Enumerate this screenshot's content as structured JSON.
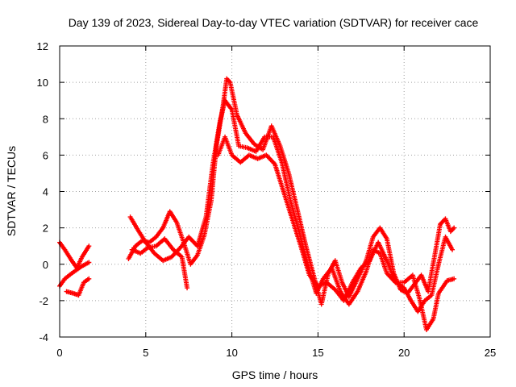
{
  "chart_data": {
    "type": "scatter",
    "title": "Day 139 of 2023, Sidereal Day-to-day VTEC variation (SDTVAR) for receiver cace",
    "xlabel": "GPS time / hours",
    "ylabel": "SDTVAR / TECUs",
    "xlim": [
      0,
      25
    ],
    "ylim": [
      -4,
      12
    ],
    "xticks": [
      0,
      5,
      10,
      15,
      20,
      25
    ],
    "yticks": [
      -4,
      -2,
      0,
      2,
      4,
      6,
      8,
      10,
      12
    ],
    "grid": true,
    "marker": "+",
    "series": [
      {
        "name": "SDTVAR",
        "color": "#ff0000",
        "tracks": [
          [
            [
              0.0,
              1.2
            ],
            [
              0.3,
              0.8
            ],
            [
              0.7,
              0.2
            ],
            [
              1.0,
              -0.2
            ],
            [
              1.3,
              0.4
            ],
            [
              1.7,
              1.0
            ]
          ],
          [
            [
              0.0,
              -1.2
            ],
            [
              0.3,
              -0.8
            ],
            [
              0.7,
              -0.5
            ],
            [
              1.0,
              -0.3
            ],
            [
              1.3,
              -0.1
            ],
            [
              1.7,
              0.1
            ]
          ],
          [
            [
              0.4,
              -1.5
            ],
            [
              0.8,
              -1.6
            ],
            [
              1.1,
              -1.7
            ],
            [
              1.4,
              -1.0
            ],
            [
              1.7,
              -0.8
            ]
          ],
          [
            [
              4.0,
              0.3
            ],
            [
              4.4,
              1.0
            ],
            [
              4.8,
              1.3
            ],
            [
              5.2,
              1.2
            ],
            [
              5.6,
              1.5
            ],
            [
              6.0,
              2.0
            ],
            [
              6.4,
              2.9
            ],
            [
              6.8,
              2.3
            ],
            [
              7.2,
              1.2
            ],
            [
              7.6,
              0.0
            ],
            [
              8.0,
              0.5
            ],
            [
              8.4,
              1.6
            ],
            [
              8.8,
              3.5
            ],
            [
              9.1,
              6.5
            ],
            [
              9.5,
              8.8
            ],
            [
              9.7,
              10.2
            ],
            [
              9.9,
              10.0
            ],
            [
              10.3,
              8.2
            ],
            [
              10.8,
              7.2
            ],
            [
              11.3,
              6.6
            ],
            [
              11.8,
              6.3
            ],
            [
              12.3,
              7.6
            ],
            [
              12.8,
              6.5
            ],
            [
              13.3,
              5.0
            ],
            [
              13.8,
              3.0
            ],
            [
              14.3,
              1.0
            ],
            [
              14.8,
              -0.8
            ],
            [
              15.2,
              -2.2
            ],
            [
              15.6,
              -0.5
            ],
            [
              16.0,
              0.2
            ],
            [
              16.4,
              -1.0
            ],
            [
              16.8,
              -1.8
            ],
            [
              17.3,
              -0.8
            ],
            [
              17.8,
              0.2
            ],
            [
              18.2,
              1.5
            ],
            [
              18.6,
              2.0
            ],
            [
              19.0,
              1.4
            ],
            [
              19.4,
              -0.5
            ],
            [
              19.8,
              -1.4
            ],
            [
              20.2,
              -1.6
            ],
            [
              20.6,
              -1.1
            ],
            [
              21.0,
              -0.6
            ],
            [
              21.4,
              -1.5
            ],
            [
              21.8,
              0.6
            ],
            [
              22.1,
              2.2
            ],
            [
              22.4,
              2.5
            ],
            [
              22.7,
              1.8
            ],
            [
              22.9,
              2.0
            ]
          ],
          [
            [
              4.2,
              0.8
            ],
            [
              4.7,
              0.6
            ],
            [
              5.1,
              0.9
            ],
            [
              5.6,
              1.0
            ],
            [
              6.1,
              1.4
            ],
            [
              6.6,
              0.8
            ],
            [
              7.1,
              0.4
            ],
            [
              7.4,
              -1.3
            ]
          ],
          [
            [
              4.1,
              2.6
            ],
            [
              4.6,
              1.8
            ],
            [
              5.0,
              1.2
            ],
            [
              5.5,
              0.6
            ],
            [
              6.0,
              0.2
            ],
            [
              6.5,
              0.4
            ],
            [
              7.0,
              0.9
            ],
            [
              7.5,
              1.5
            ],
            [
              8.0,
              1.0
            ],
            [
              8.5,
              2.6
            ],
            [
              8.9,
              5.5
            ],
            [
              9.3,
              7.8
            ],
            [
              9.6,
              9.0
            ],
            [
              10.0,
              8.5
            ],
            [
              10.4,
              6.5
            ],
            [
              10.9,
              6.4
            ],
            [
              11.4,
              6.2
            ],
            [
              11.9,
              7.0
            ],
            [
              12.4,
              7.0
            ],
            [
              12.9,
              5.6
            ],
            [
              13.4,
              3.5
            ],
            [
              13.9,
              1.8
            ],
            [
              14.4,
              0.0
            ],
            [
              14.9,
              -1.6
            ],
            [
              15.3,
              -0.8
            ],
            [
              15.8,
              -0.2
            ],
            [
              16.3,
              -1.5
            ],
            [
              16.8,
              -2.2
            ],
            [
              17.3,
              -1.5
            ],
            [
              17.8,
              -0.4
            ],
            [
              18.2,
              0.8
            ],
            [
              18.6,
              0.6
            ],
            [
              19.0,
              -0.5
            ],
            [
              19.5,
              -1.0
            ],
            [
              20.0,
              -1.0
            ],
            [
              20.5,
              -0.6
            ],
            [
              20.9,
              -1.9
            ],
            [
              21.3,
              -3.6
            ],
            [
              21.7,
              -3.0
            ],
            [
              22.0,
              -1.6
            ],
            [
              22.5,
              -0.9
            ],
            [
              22.9,
              -0.8
            ]
          ],
          [
            [
              9.2,
              6.0
            ],
            [
              9.6,
              7.0
            ],
            [
              10.0,
              6.0
            ],
            [
              10.5,
              5.6
            ],
            [
              11.0,
              6.0
            ],
            [
              11.5,
              5.8
            ],
            [
              12.0,
              6.0
            ],
            [
              12.5,
              5.5
            ],
            [
              13.0,
              4.0
            ],
            [
              13.5,
              2.5
            ],
            [
              14.0,
              1.0
            ],
            [
              14.5,
              -0.6
            ],
            [
              15.0,
              -1.2
            ],
            [
              15.5,
              -1.0
            ],
            [
              16.0,
              -1.4
            ],
            [
              16.5,
              -2.0
            ],
            [
              17.0,
              -1.0
            ],
            [
              17.5,
              -0.2
            ],
            [
              18.0,
              0.2
            ],
            [
              18.5,
              1.2
            ],
            [
              19.0,
              0.2
            ],
            [
              19.5,
              -1.0
            ],
            [
              20.0,
              -1.3
            ],
            [
              20.4,
              -2.0
            ],
            [
              20.8,
              -2.6
            ],
            [
              21.2,
              -2.0
            ],
            [
              21.6,
              -1.7
            ],
            [
              22.0,
              0.0
            ],
            [
              22.4,
              1.5
            ],
            [
              22.8,
              0.8
            ]
          ]
        ]
      }
    ]
  }
}
